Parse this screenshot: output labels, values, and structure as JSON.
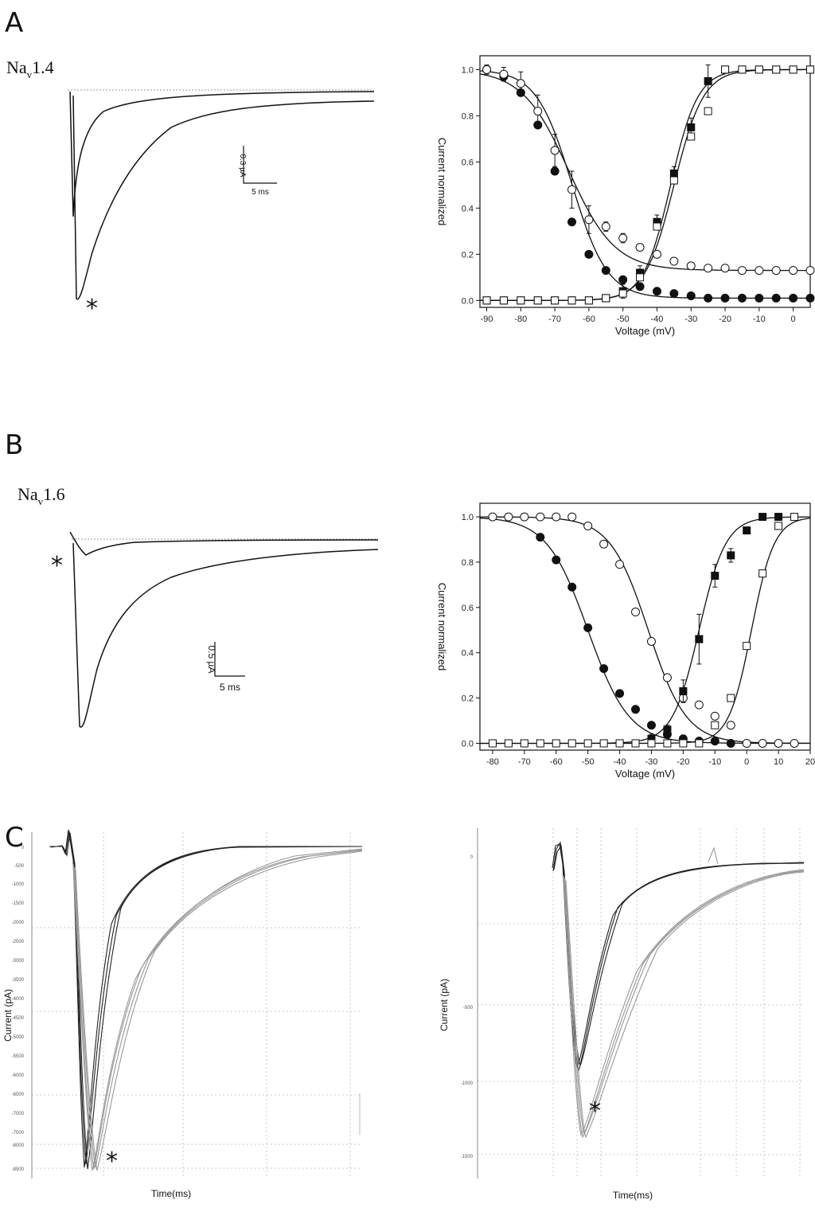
{
  "panels": {
    "A": {
      "letter": "A",
      "channel": {
        "main": "Na",
        "sub": "v",
        "rest": "1.4"
      },
      "scale_bar": {
        "current": "0.3 µA",
        "time": "5 ms"
      },
      "marker": "*"
    },
    "B": {
      "letter": "B",
      "channel": {
        "main": "Na",
        "sub": "v",
        "rest": "1.6"
      },
      "scale_bar": {
        "current": "0.5 µA",
        "time": "5 ms"
      },
      "marker": "*"
    },
    "C": {
      "letter": "C",
      "left_plot": {
        "ylabel": "Current (pA)",
        "xlabel": "Time(ms)",
        "marker": "*"
      },
      "right_plot": {
        "ylabel": "Current (pA)",
        "xlabel": "Time(ms)",
        "marker": "*",
        "ytick_labels": [
          "0",
          "-500",
          "-1000",
          "-1500"
        ]
      }
    }
  },
  "chart_data": [
    {
      "id": "A-right",
      "type": "scatter",
      "title": "",
      "xlabel": "Voltage (mV)",
      "ylabel": "Current normalized",
      "xlim": [
        -92,
        5
      ],
      "ylim": [
        -0.03,
        1.06
      ],
      "xticks": [
        -90,
        -80,
        -70,
        -60,
        -50,
        -40,
        -30,
        -20,
        -10,
        0
      ],
      "yticks": [
        0.0,
        0.2,
        0.4,
        0.6,
        0.8,
        1.0
      ],
      "xtick_labels": [
        "-90",
        "-80",
        "-70",
        "-60",
        "-50",
        "-40",
        "-30",
        "-20",
        "-10",
        "0"
      ],
      "ytick_labels": [
        "0.0",
        "0.2",
        "0.4",
        "0.6",
        "0.8",
        "1.0"
      ],
      "grid": false,
      "series": [
        {
          "marker": "filled-circle",
          "x": [
            -90,
            -85,
            -80,
            -75,
            -70,
            -65,
            -60,
            -55,
            -50,
            -45,
            -40,
            -35,
            -30,
            -25,
            -20,
            -15,
            -10,
            -5,
            0,
            5
          ],
          "y": [
            1.0,
            0.97,
            0.9,
            0.76,
            0.56,
            0.34,
            0.2,
            0.13,
            0.09,
            0.06,
            0.04,
            0.03,
            0.02,
            0.01,
            0.01,
            0.01,
            0.01,
            0.01,
            0.01,
            0.01
          ]
        },
        {
          "marker": "open-circle",
          "x": [
            -90,
            -85,
            -80,
            -75,
            -70,
            -65,
            -60,
            -55,
            -50,
            -45,
            -40,
            -35,
            -30,
            -25,
            -20,
            -15,
            -10,
            -5,
            0,
            5
          ],
          "y": [
            1.0,
            0.98,
            0.94,
            0.82,
            0.65,
            0.48,
            0.35,
            0.32,
            0.27,
            0.23,
            0.2,
            0.17,
            0.15,
            0.14,
            0.14,
            0.13,
            0.13,
            0.13,
            0.13,
            0.13
          ],
          "err": [
            0.02,
            0.03,
            0.05,
            0.07,
            0.07,
            0.08,
            0.06,
            0.02,
            0.02,
            0.01,
            0.01,
            0.01,
            0.01,
            0.01,
            0.01,
            0.01,
            0.01,
            0.01,
            0.01,
            0.01
          ]
        },
        {
          "marker": "filled-square",
          "x": [
            -90,
            -85,
            -80,
            -75,
            -70,
            -65,
            -60,
            -55,
            -50,
            -45,
            -40,
            -35,
            -30,
            -25,
            -20,
            -15,
            -10,
            -5,
            0,
            5
          ],
          "y": [
            0.0,
            0.0,
            0.0,
            0.0,
            0.0,
            0.0,
            0.0,
            0.01,
            0.04,
            0.12,
            0.34,
            0.55,
            0.75,
            0.95,
            1.0,
            1.0,
            1.0,
            1.0,
            1.0,
            1.0
          ],
          "err": [
            0,
            0,
            0,
            0,
            0,
            0,
            0,
            0,
            0.03,
            0.03,
            0.03,
            0.03,
            0.04,
            0.07,
            0,
            0,
            0,
            0,
            0,
            0
          ]
        },
        {
          "marker": "open-square",
          "x": [
            -90,
            -85,
            -80,
            -75,
            -70,
            -65,
            -60,
            -55,
            -50,
            -45,
            -40,
            -35,
            -30,
            -25,
            -20,
            -15,
            -10,
            -5,
            0,
            5
          ],
          "y": [
            0.0,
            0.0,
            0.0,
            0.0,
            0.0,
            0.0,
            0.0,
            0.01,
            0.03,
            0.1,
            0.32,
            0.52,
            0.71,
            0.82,
            1.0,
            1.0,
            1.0,
            1.0,
            1.0,
            1.0
          ]
        }
      ],
      "fits": [
        {
          "kind": "boltzmann-down",
          "v_half": -65,
          "k": 5.2,
          "bottom": 0.01
        },
        {
          "kind": "boltzmann-down",
          "v_half": -66,
          "k": 6.8,
          "bottom": 0.13
        },
        {
          "kind": "boltzmann-up",
          "v_half": -36,
          "k": 4.0
        },
        {
          "kind": "boltzmann-up",
          "v_half": -35,
          "k": 4.3
        }
      ]
    },
    {
      "id": "B-right",
      "type": "scatter",
      "title": "",
      "xlabel": "Voltage (mV)",
      "ylabel": "Current normalized",
      "xlim": [
        -84,
        20
      ],
      "ylim": [
        -0.03,
        1.06
      ],
      "xticks": [
        -80,
        -70,
        -60,
        -50,
        -40,
        -30,
        -20,
        -10,
        0,
        10,
        20
      ],
      "yticks": [
        0.0,
        0.2,
        0.4,
        0.6,
        0.8,
        1.0
      ],
      "xtick_labels": [
        "-80",
        "-70",
        "-60",
        "-50",
        "-40",
        "-30",
        "-20",
        "-10",
        "0",
        "10",
        "20"
      ],
      "ytick_labels": [
        "0.0",
        "0.2",
        "0.4",
        "0.6",
        "0.8",
        "1.0"
      ],
      "grid": false,
      "series": [
        {
          "marker": "filled-circle",
          "x": [
            -65,
            -60,
            -55,
            -50,
            -45,
            -40,
            -35,
            -30,
            -25,
            -20,
            -15,
            -10,
            -5
          ],
          "y": [
            0.91,
            0.81,
            0.69,
            0.51,
            0.33,
            0.22,
            0.15,
            0.08,
            0.04,
            0.02,
            0.01,
            0.01,
            0.0
          ]
        },
        {
          "marker": "open-circle",
          "x": [
            -80,
            -75,
            -70,
            -65,
            -60,
            -55,
            -50,
            -45,
            -40,
            -35,
            -30,
            -25,
            -20,
            -15,
            -10,
            -5,
            0,
            5,
            10,
            15
          ],
          "y": [
            1.0,
            1.0,
            1.0,
            1.0,
            1.0,
            1.0,
            0.96,
            0.88,
            0.79,
            0.58,
            0.45,
            0.29,
            0.2,
            0.17,
            0.12,
            0.08,
            0.0,
            0.0,
            0.0,
            0.0
          ]
        },
        {
          "marker": "filled-square",
          "x": [
            -30,
            -25,
            -20,
            -15,
            -10,
            -5,
            0,
            5,
            10
          ],
          "y": [
            0.02,
            0.06,
            0.23,
            0.46,
            0.74,
            0.83,
            0.94,
            1.0,
            1.0
          ],
          "err": [
            0.02,
            0.02,
            0.05,
            0.11,
            0.05,
            0.03,
            0,
            0,
            0
          ]
        },
        {
          "marker": "open-square",
          "x": [
            -80,
            -75,
            -70,
            -65,
            -60,
            -55,
            -50,
            -45,
            -40,
            -35,
            -30,
            -25,
            -20,
            -15,
            -10,
            -5,
            0,
            5,
            10,
            15
          ],
          "y": [
            0.0,
            0.0,
            0.0,
            0.0,
            0.0,
            0.0,
            0.0,
            0.0,
            0.0,
            0.0,
            0.0,
            0.0,
            0.0,
            0.0,
            0.08,
            0.2,
            0.43,
            0.75,
            0.96,
            1.0
          ]
        }
      ],
      "fits": [
        {
          "kind": "boltzmann-down",
          "v_half": -50,
          "k": 6.5,
          "bottom": 0.0
        },
        {
          "kind": "boltzmann-down",
          "v_half": -31,
          "k": 6.0,
          "bottom": 0.0
        },
        {
          "kind": "boltzmann-up",
          "v_half": -15,
          "k": 4.2
        },
        {
          "kind": "boltzmann-up",
          "v_half": 1.5,
          "k": 3.6
        }
      ]
    }
  ]
}
